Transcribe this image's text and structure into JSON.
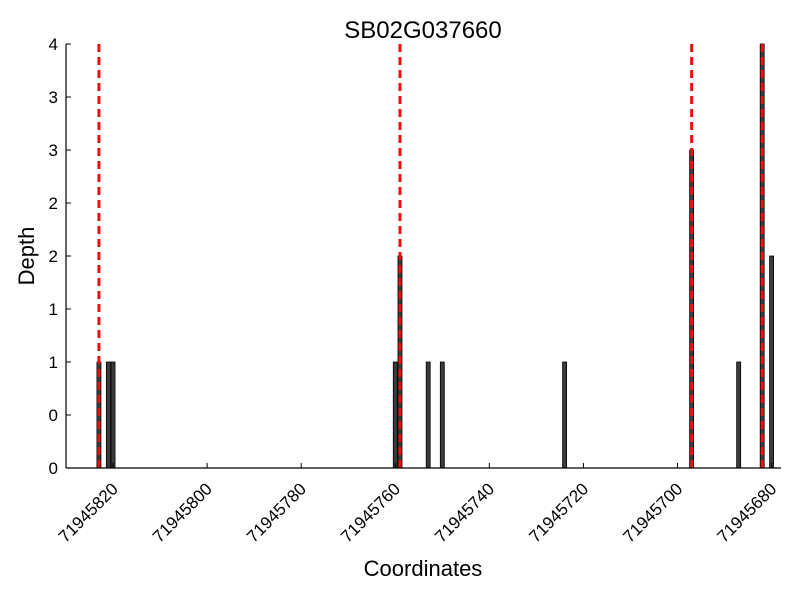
{
  "chart_data": {
    "type": "bar",
    "title": "SB02G037660",
    "xlabel": "Coordinates",
    "ylabel": "Depth",
    "x_reversed": true,
    "xlim": [
      71945830,
      71945678
    ],
    "ylim": [
      0,
      4
    ],
    "x_ticks": [
      71945820,
      71945800,
      71945780,
      71945760,
      71945740,
      71945720,
      71945700,
      71945680
    ],
    "y_ticks": [
      0,
      0.5,
      1,
      1.5,
      2,
      2.5,
      3,
      3.5,
      4
    ],
    "y_tick_labels": [
      "0",
      "0",
      "1",
      "1",
      "2",
      "2",
      "3",
      "3",
      "4"
    ],
    "bars": [
      {
        "x": 71945823,
        "value": 1
      },
      {
        "x": 71945821,
        "value": 1
      },
      {
        "x": 71945820,
        "value": 1
      },
      {
        "x": 71945760,
        "value": 1
      },
      {
        "x": 71945759,
        "value": 2
      },
      {
        "x": 71945753,
        "value": 1
      },
      {
        "x": 71945750,
        "value": 1
      },
      {
        "x": 71945724,
        "value": 1
      },
      {
        "x": 71945697,
        "value": 3
      },
      {
        "x": 71945687,
        "value": 1
      },
      {
        "x": 71945682,
        "value": 4
      },
      {
        "x": 71945680,
        "value": 2
      }
    ],
    "markers": [
      71945823,
      71945759,
      71945697,
      71945682
    ],
    "colors": {
      "bar": "#3b3b3b",
      "marker": "#ee1111"
    },
    "grid": false,
    "legend": "none"
  }
}
